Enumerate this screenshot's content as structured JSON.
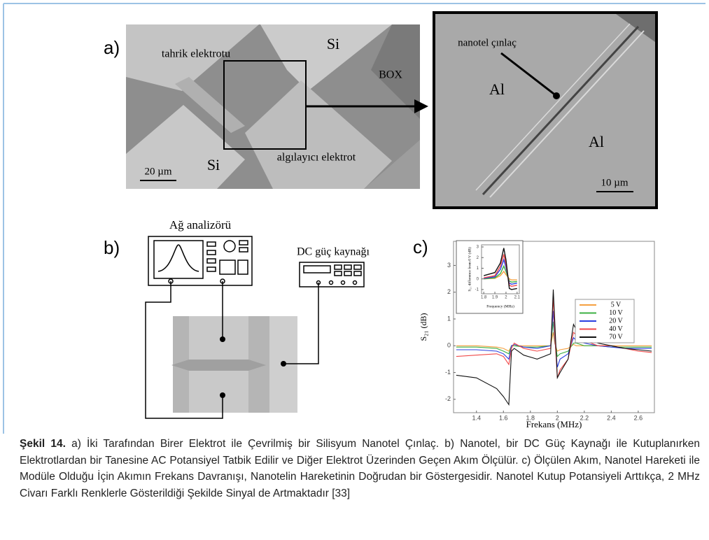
{
  "panels": {
    "a": {
      "label": "a)",
      "labels": [
        "tahrik elektrotu",
        "Si",
        "BOX",
        "Si",
        "algılayıcı elektrot"
      ],
      "scale_bar": "20 µm",
      "zoom": {
        "labels": [
          "nanotel çınlaç",
          "Al",
          "Al"
        ],
        "scale_bar": "10 µm"
      }
    },
    "b": {
      "label": "b)",
      "analyzer": "Ağ analizörü",
      "dc_supply": "DC güç kaynağı"
    },
    "c": {
      "label": "c)"
    }
  },
  "chart_data": [
    {
      "type": "line",
      "x_label": "Frekans (MHz)",
      "y_label": "S₂₁  (dB)",
      "x": [
        1.25,
        1.4,
        1.55,
        1.6,
        1.64,
        1.66,
        1.68,
        1.75,
        1.85,
        1.95,
        1.97,
        1.98,
        2.0,
        2.02,
        2.08,
        2.12,
        2.14,
        2.2,
        2.3,
        2.4,
        2.5,
        2.6,
        2.7
      ],
      "xlim": [
        1.23,
        2.72
      ],
      "xticks": [
        1.4,
        1.6,
        1.8,
        2.0,
        2.2,
        2.4,
        2.6
      ],
      "ylim": [
        -2.5,
        3.9
      ],
      "yticks": [
        -2,
        -1,
        0,
        1,
        2,
        3
      ],
      "legend": "right",
      "series": [
        {
          "name": "5 V",
          "color": "#f5a040",
          "values": [
            0,
            0,
            -0.05,
            -0.1,
            -0.2,
            0,
            0,
            0,
            0,
            0,
            0.5,
            0.1,
            -0.2,
            -0.15,
            -0.1,
            0.05,
            0,
            0,
            0,
            0,
            0,
            0,
            0
          ]
        },
        {
          "name": "10 V",
          "color": "#3cb043",
          "values": [
            -0.05,
            -0.05,
            -0.1,
            -0.2,
            -0.3,
            0,
            0,
            -0.05,
            -0.05,
            0,
            0.9,
            0.2,
            -0.4,
            -0.3,
            -0.2,
            0.1,
            0.1,
            0,
            0,
            -0.05,
            -0.05,
            -0.05,
            -0.05
          ]
        },
        {
          "name": "20 V",
          "color": "#2a3fe0",
          "values": [
            -0.15,
            -0.15,
            -0.2,
            -0.3,
            -0.5,
            0,
            0.05,
            -0.05,
            -0.1,
            0,
            1.3,
            0.3,
            -0.8,
            -0.5,
            -0.3,
            0.3,
            0.2,
            0.1,
            0,
            -0.05,
            -0.1,
            -0.1,
            -0.1
          ]
        },
        {
          "name": "40 V",
          "color": "#f04848",
          "values": [
            -0.4,
            -0.35,
            -0.3,
            -0.4,
            -0.7,
            -0.1,
            0.1,
            -0.1,
            -0.2,
            -0.1,
            1.8,
            0.5,
            -1.2,
            -0.9,
            -0.5,
            0.5,
            0.4,
            0.2,
            0,
            0,
            -0.1,
            -0.2,
            -0.25
          ]
        },
        {
          "name": "70 V",
          "color": "#111111",
          "values": [
            -1.1,
            -1.2,
            -1.6,
            -1.9,
            -2.2,
            -0.2,
            -0.1,
            -0.35,
            -0.5,
            -0.3,
            2.1,
            1.0,
            -1.2,
            -1.0,
            -0.5,
            0.8,
            0.6,
            0.4,
            0.1,
            0,
            -0.1,
            -0.15,
            -0.2
          ]
        }
      ]
    },
    {
      "type": "line",
      "x_label": "Frequency (MHz)",
      "y_label": "S₂₁ difference from 0 V (dB)",
      "x": [
        1.8,
        1.9,
        1.95,
        1.98,
        2.0,
        2.03,
        2.05,
        2.1
      ],
      "xlim": [
        1.78,
        2.12
      ],
      "xticks": [
        1.8,
        1.9,
        2,
        2.1
      ],
      "ylim": [
        -1.4,
        3.2
      ],
      "yticks": [
        -1,
        0,
        1,
        2,
        3
      ],
      "series": [
        {
          "color": "#f5a040",
          "values": [
            0,
            0.05,
            0.3,
            0.7,
            0.4,
            0,
            -0.1,
            -0.1
          ]
        },
        {
          "color": "#3cb043",
          "values": [
            0,
            0.1,
            0.5,
            1.2,
            0.7,
            -0.2,
            -0.3,
            -0.25
          ]
        },
        {
          "color": "#2a3fe0",
          "values": [
            0.05,
            0.2,
            0.9,
            1.8,
            1.1,
            -0.4,
            -0.5,
            -0.4
          ]
        },
        {
          "color": "#f04848",
          "values": [
            0.1,
            0.3,
            1.2,
            2.3,
            1.4,
            -0.6,
            -0.7,
            -0.6
          ]
        },
        {
          "color": "#111111",
          "values": [
            0.3,
            0.6,
            1.5,
            2.9,
            1.8,
            -0.9,
            -1.0,
            -0.9
          ]
        }
      ]
    }
  ],
  "caption": {
    "number": "Şekil 14.",
    "text": "a) İki Tarafından Birer Elektrot ile Çevrilmiş bir Silisyum Nanotel Çınlaç. b) Nanotel, bir DC Güç Kaynağı ile Kutuplanırken Elektrotlardan bir Tanesine AC Potansiyel Tatbik Edilir ve Diğer Elektrot Üzerinden Geçen Akım Ölçülür. c) Ölçülen Akım, Nanotel Hareketi ile Modüle Olduğu İçin Akımın Frekans Davranışı, Nanotelin Hareketinin Doğrudan bir Göstergesidir. Nanotel Kutup Potansiyeli Arttıkça, 2 MHz Civarı Farklı Renklerle Gösterildiği Şekilde Sinyal de Artmaktadır [33]"
  }
}
